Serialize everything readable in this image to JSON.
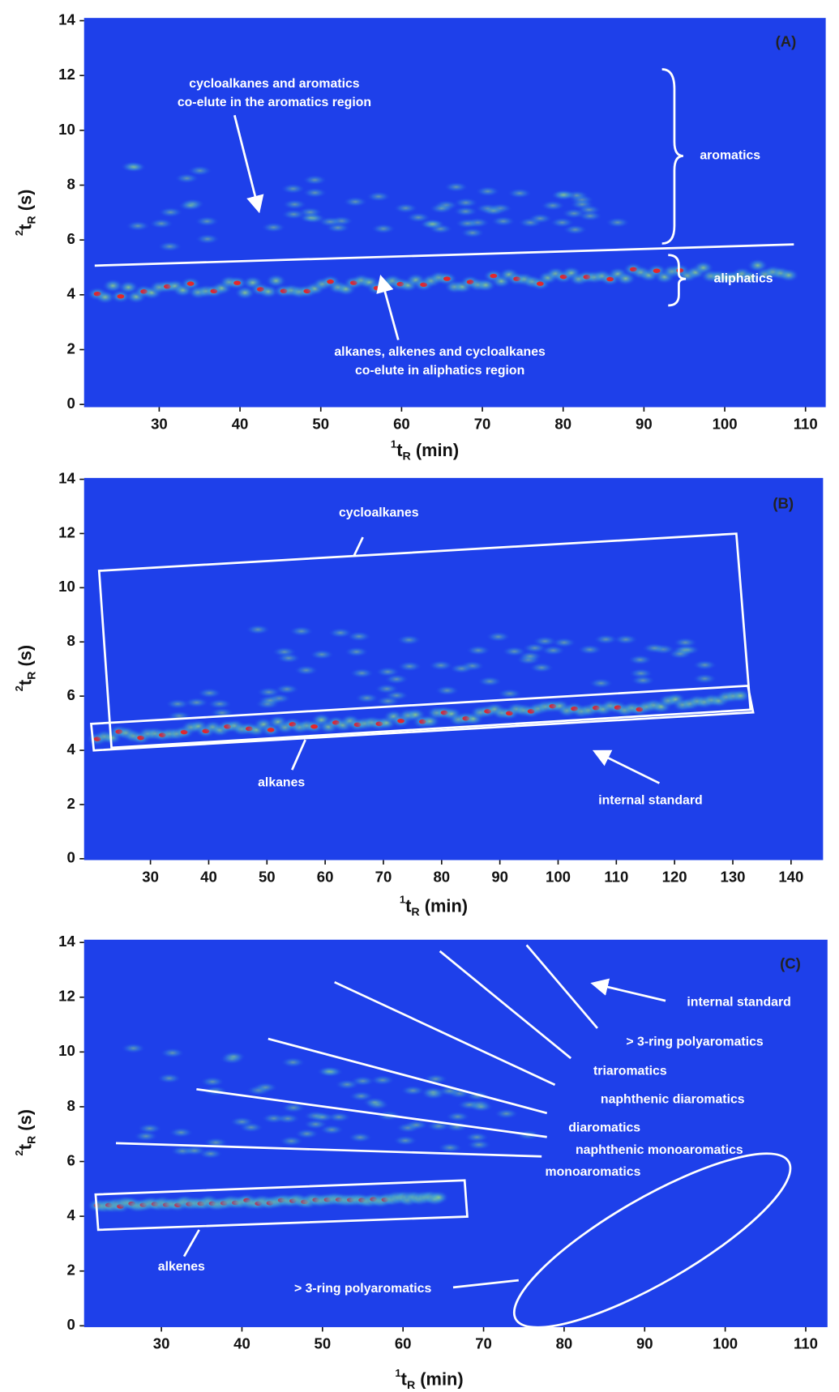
{
  "chart_data": [
    {
      "type": "heatmap",
      "panel_label": "(A)",
      "x_label": [
        "1",
        "t",
        "R",
        " (min)"
      ],
      "y_label": [
        "2",
        "t",
        "R",
        " (s)"
      ],
      "xlim": [
        20.7,
        112.5
      ],
      "xticks": [
        30,
        40,
        50,
        60,
        70,
        80,
        90,
        100,
        110
      ],
      "ylim": [
        -0.1,
        14.1
      ],
      "yticks": [
        0,
        2,
        4,
        6,
        8,
        10,
        12,
        14
      ],
      "annotations": [
        "cycloalkanes and aromatics",
        "co-elute in the aromatics region",
        "aromatics",
        "aliphatics",
        "alkanes, alkenes and cycloalkanes",
        "co-elute in aliphatics region"
      ]
    },
    {
      "type": "heatmap",
      "panel_label": "(B)",
      "x_label": [
        "1",
        "t",
        "R",
        " (min)"
      ],
      "y_label": [
        "2",
        "t",
        "R",
        " (s)"
      ],
      "xlim": [
        18.6,
        145.5
      ],
      "xticks": [
        30,
        40,
        50,
        60,
        70,
        80,
        90,
        100,
        110,
        120,
        130,
        140
      ],
      "ylim": [
        -0.05,
        14.05
      ],
      "yticks": [
        0,
        2,
        4,
        6,
        8,
        10,
        12,
        14
      ],
      "annotations": [
        "cycloalkanes",
        "alkanes",
        "internal standard"
      ]
    },
    {
      "type": "heatmap",
      "panel_label": "(C)",
      "x_label": [
        "1",
        "t",
        "R",
        " (min)"
      ],
      "y_label": [
        "2",
        "t",
        "R",
        " (s)"
      ],
      "xlim": [
        20.4,
        112.7
      ],
      "xticks": [
        30,
        40,
        50,
        60,
        70,
        80,
        90,
        100,
        110
      ],
      "ylim": [
        -0.05,
        14.1
      ],
      "yticks": [
        0,
        2,
        4,
        6,
        8,
        10,
        12,
        14
      ],
      "annotations": [
        "internal standard",
        "> 3-ring polyaromatics",
        "triaromatics",
        "naphthenic diaromatics",
        "diaromatics",
        "naphthenic monoaromatics",
        "monoaromatics",
        "alkenes",
        "> 3-ring polyaromatics"
      ]
    }
  ]
}
